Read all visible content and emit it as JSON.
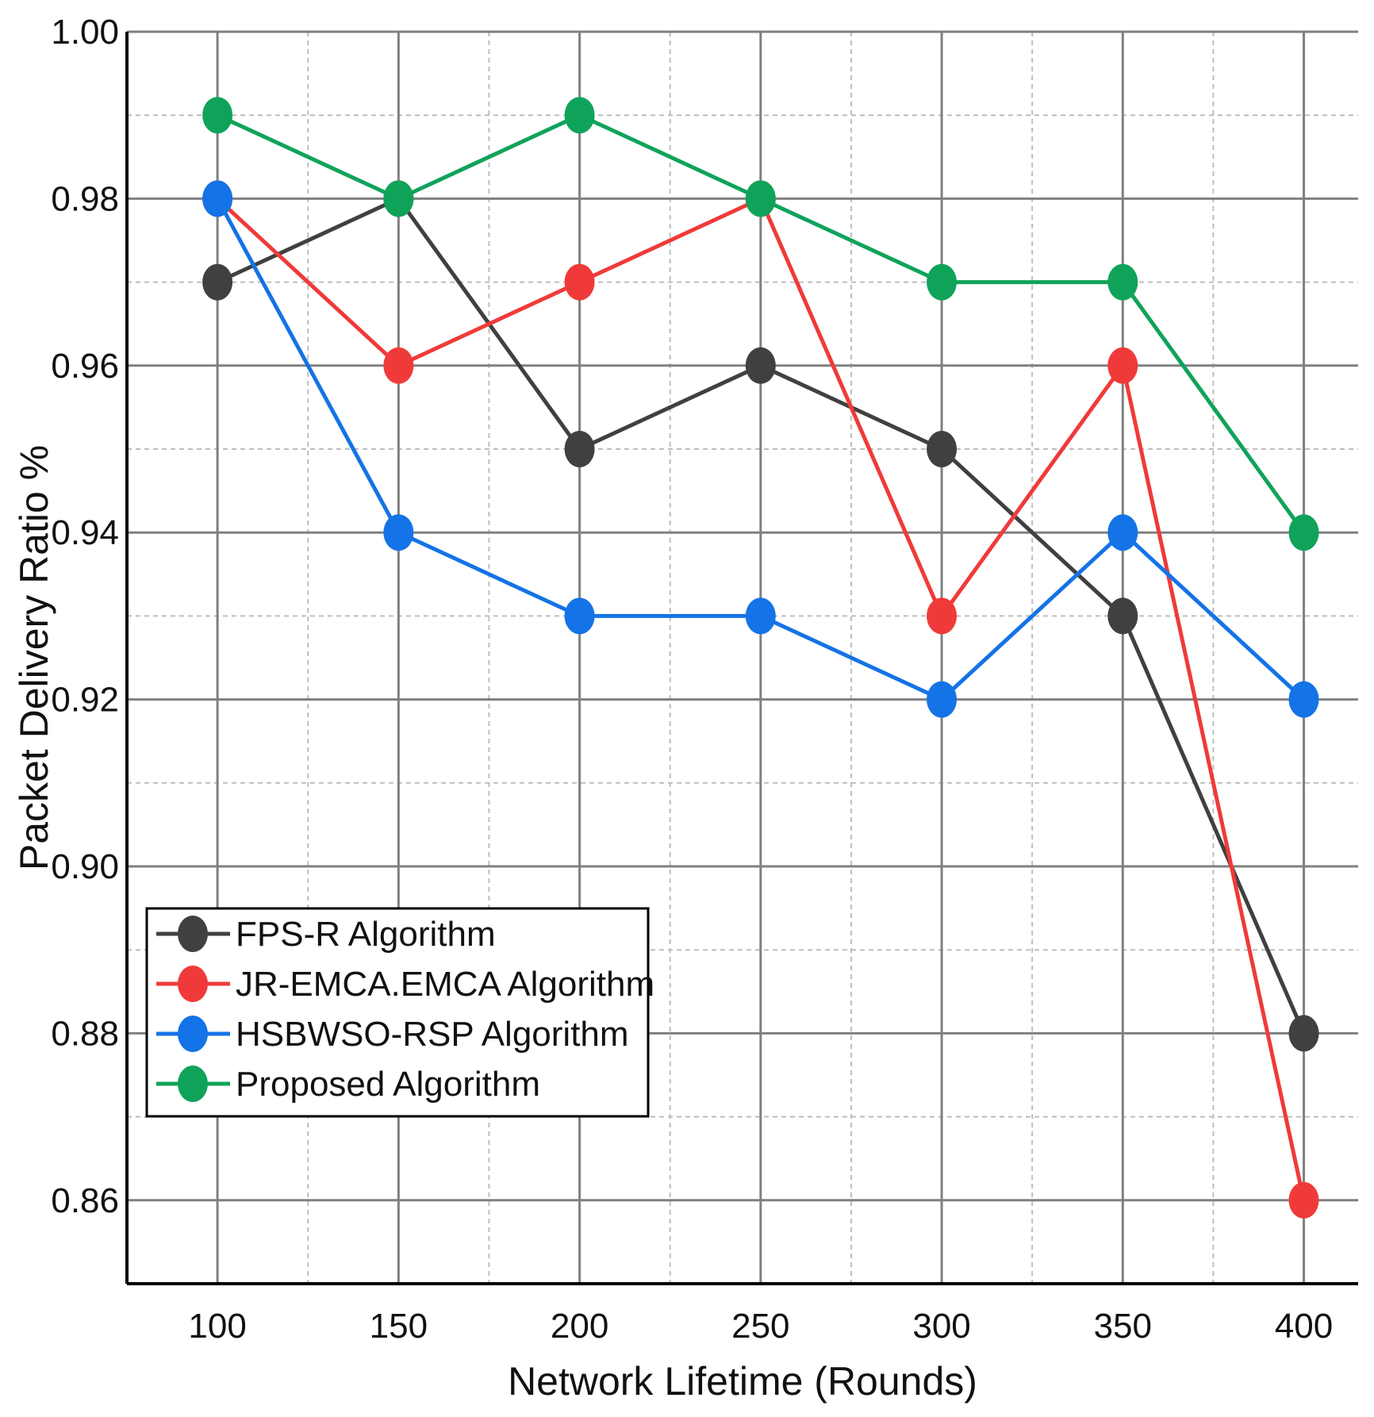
{
  "chart_data": {
    "type": "line",
    "title": "",
    "xlabel": "Network Lifetime (Rounds)",
    "ylabel": "Packet Delivery Ratio %",
    "x": [
      100,
      150,
      200,
      250,
      300,
      350,
      400
    ],
    "x_ticks": [
      "100",
      "150",
      "200",
      "250",
      "300",
      "350",
      "400"
    ],
    "xlim": [
      75,
      415
    ],
    "ylim": [
      0.85,
      1.0
    ],
    "y_ticks": [
      "0.86",
      "0.88",
      "0.90",
      "0.92",
      "0.94",
      "0.96",
      "0.98",
      "1.00"
    ],
    "grid": true,
    "legend_position": "bottom-left",
    "series": [
      {
        "name": "FPS-R Algorithm",
        "color": "#404040",
        "values": [
          0.97,
          0.98,
          0.95,
          0.96,
          0.95,
          0.93,
          0.88
        ]
      },
      {
        "name": "JR-EMCA.EMCA Algorithm",
        "color": "#f03a3a",
        "values": [
          0.98,
          0.96,
          0.97,
          0.98,
          0.93,
          0.96,
          0.86
        ]
      },
      {
        "name": "HSBWSO-RSP Algorithm",
        "color": "#1473e6",
        "values": [
          0.98,
          0.94,
          0.93,
          0.93,
          0.92,
          0.94,
          0.92
        ]
      },
      {
        "name": "Proposed Algorithm",
        "color": "#0fa35a",
        "values": [
          0.99,
          0.98,
          0.99,
          0.98,
          0.97,
          0.97,
          0.94
        ]
      }
    ]
  }
}
